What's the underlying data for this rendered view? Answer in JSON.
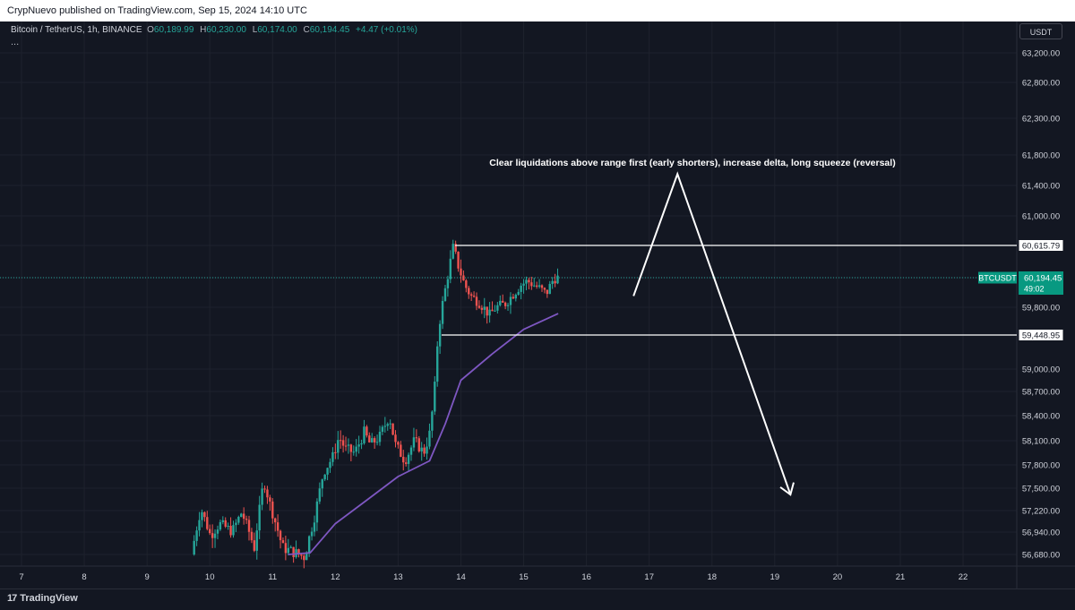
{
  "header": {
    "published_by": "CrypNuevo published on TradingView.com, Sep 15, 2024 14:10 UTC"
  },
  "legend": {
    "symbol": "Bitcoin / TetherUS, 1h, BINANCE",
    "open_label": "O",
    "open": "60,189.99",
    "high_label": "H",
    "high": "60,230.00",
    "low_label": "L",
    "low": "60,174.00",
    "close_label": "C",
    "close": "60,194.45",
    "change": "+4.47 (+0.01%)",
    "more": "..."
  },
  "currency_button": "USDT",
  "footer": {
    "brand": "TradingView",
    "logo": "17"
  },
  "colors": {
    "background": "#131722",
    "up": "#26a69a",
    "down": "#ef5350",
    "ma": "#7e57c2",
    "annotation": "#ffffff",
    "last_price_bg": "#089981"
  },
  "chart_data": {
    "type": "candlestick",
    "symbol": "BTCUSDT",
    "timeframe": "1h",
    "x_ticks": [
      "7",
      "8",
      "9",
      "10",
      "11",
      "12",
      "13",
      "14",
      "15",
      "16",
      "17",
      "18",
      "19",
      "20",
      "21",
      "22"
    ],
    "y_ticks": [
      "56,680.00",
      "56,940.00",
      "57,220.00",
      "57,500.00",
      "57,800.00",
      "58,100.00",
      "58,400.00",
      "58,700.00",
      "59,000.00",
      "59,448.95",
      "59,800.00",
      "60,194.45",
      "60,615.79",
      "61,000.00",
      "61,400.00",
      "61,800.00",
      "62,300.00",
      "62,800.00",
      "63,200.00"
    ],
    "price_labels": {
      "range_high": "60,615.79",
      "range_low": "59,448.95",
      "last_symbol": "BTCUSDT",
      "last_price": "60,194.45",
      "countdown": "49:02"
    },
    "range_high": 60615.79,
    "range_low": 59448.95,
    "last_price": 60194.45,
    "annotation": "Clear liquidations above range first (early shorters), increase delta, long squeeze (reversal)",
    "projected_path": [
      {
        "day": 16.75,
        "price": 59950
      },
      {
        "day": 17.45,
        "price": 61550
      },
      {
        "day": 19.25,
        "price": 57420
      }
    ],
    "candles_day_range": [
      9.75,
      15.55
    ],
    "ma_path": [
      {
        "day": 11.25,
        "price": 56680
      },
      {
        "day": 11.6,
        "price": 56700
      },
      {
        "day": 12.0,
        "price": 57050
      },
      {
        "day": 12.5,
        "price": 57350
      },
      {
        "day": 13.0,
        "price": 57650
      },
      {
        "day": 13.5,
        "price": 57850
      },
      {
        "day": 13.75,
        "price": 58300
      },
      {
        "day": 14.0,
        "price": 58850
      },
      {
        "day": 14.5,
        "price": 59200
      },
      {
        "day": 15.0,
        "price": 59520
      },
      {
        "day": 15.55,
        "price": 59720
      }
    ]
  }
}
